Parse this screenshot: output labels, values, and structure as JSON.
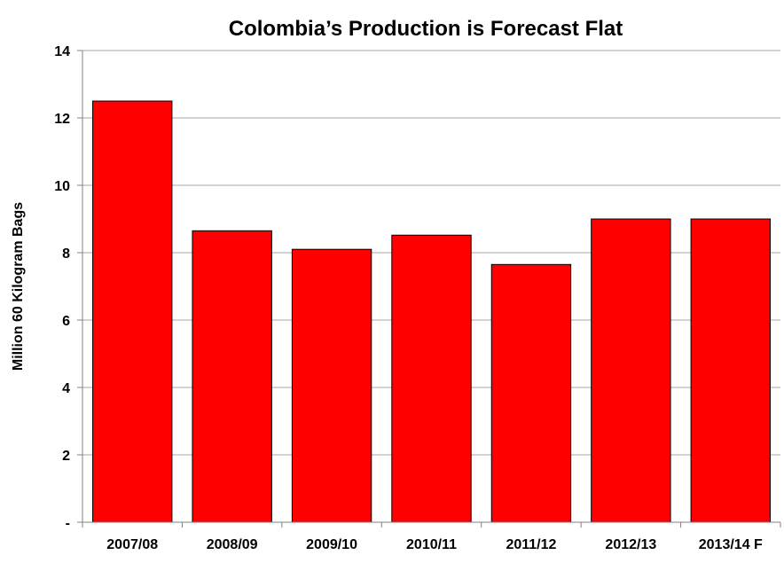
{
  "chart_data": {
    "type": "bar",
    "title": "Colombia’s Production is Forecast Flat",
    "xlabel": "",
    "ylabel": "Million 60 Kilogram Bags",
    "categories": [
      "2007/08",
      "2008/09",
      "2009/10",
      "2010/11",
      "2011/12",
      "2012/13",
      "2013/14 F"
    ],
    "values": [
      12.5,
      8.65,
      8.1,
      8.52,
      7.65,
      9.0,
      9.0
    ],
    "ylim": [
      0,
      14
    ],
    "yticks": [
      0,
      2,
      4,
      6,
      8,
      10,
      12,
      14
    ],
    "ytick_labels": [
      "-",
      "2",
      "4",
      "6",
      "8",
      "10",
      "12",
      "14"
    ],
    "grid": true,
    "bar_color": "#FF0000",
    "bar_edge_color": "#000000",
    "grid_color": "#A6A6A6"
  }
}
